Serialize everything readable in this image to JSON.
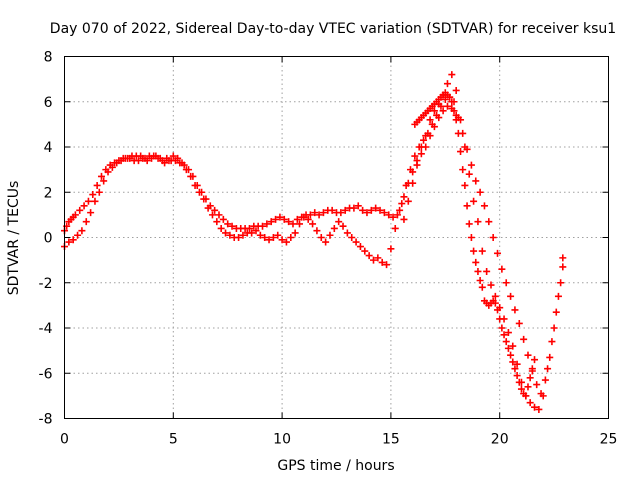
{
  "chart_data": {
    "type": "scatter",
    "title": "Day 070 of 2022, Sidereal Day-to-day VTEC variation (SDTVAR) for receiver ksu1",
    "xlabel": "GPS time / hours",
    "ylabel": "SDTVAR / TECUs",
    "xlim": [
      0,
      25
    ],
    "ylim": [
      -8,
      8
    ],
    "xticks": [
      0,
      5,
      10,
      15,
      20,
      25
    ],
    "yticks": [
      -8,
      -6,
      -4,
      -2,
      0,
      2,
      4,
      6,
      8
    ],
    "grid": true,
    "legend": "none",
    "marker": "+",
    "color": "#ff0000",
    "series": [
      {
        "x": [
          0.0,
          0.1,
          0.2,
          0.3,
          0.4,
          0.5,
          0.7,
          0.9,
          1.1,
          1.3,
          1.5,
          1.7,
          1.9,
          2.1,
          2.3,
          2.5,
          2.7,
          2.9,
          3.1,
          3.3,
          3.5,
          3.7,
          3.9,
          4.1,
          4.3,
          4.5,
          4.7,
          4.9,
          5.1,
          5.3,
          5.5,
          5.7,
          5.9,
          6.1,
          6.3,
          6.5,
          6.7,
          6.9,
          7.1,
          7.3,
          7.5,
          7.7,
          7.9,
          8.1,
          8.3,
          8.5,
          8.7,
          8.9,
          9.1,
          9.3,
          9.5,
          9.7,
          9.9,
          10.1,
          10.3,
          10.5,
          10.7,
          10.9,
          11.1,
          11.3,
          11.5,
          11.7,
          11.9,
          12.1,
          12.3,
          12.5,
          12.7,
          12.9,
          13.1,
          13.3,
          13.5,
          13.7,
          13.9,
          14.1,
          14.3,
          14.5,
          14.7,
          14.9,
          15.1,
          15.3,
          15.5,
          15.7,
          15.9,
          16.1,
          16.3,
          16.5,
          16.7,
          16.9,
          17.1,
          17.3,
          17.5,
          17.7,
          17.9,
          18.1,
          18.3,
          18.5,
          18.7,
          18.9,
          19.1,
          19.3,
          19.5,
          19.7,
          19.9,
          20.1,
          20.3,
          20.5,
          20.7,
          20.9,
          21.1,
          21.3,
          21.5,
          21.7,
          21.9,
          22.1,
          22.3,
          22.5,
          22.7,
          22.9
        ],
        "y": [
          0.3,
          0.5,
          0.7,
          0.8,
          0.9,
          1.0,
          1.2,
          1.4,
          1.6,
          1.9,
          2.3,
          2.7,
          3.0,
          3.2,
          3.3,
          3.4,
          3.5,
          3.5,
          3.6,
          3.6,
          3.6,
          3.5,
          3.6,
          3.6,
          3.5,
          3.4,
          3.5,
          3.4,
          3.4,
          3.3,
          3.2,
          3.0,
          2.7,
          2.3,
          2.0,
          1.7,
          1.4,
          1.2,
          1.0,
          0.8,
          0.6,
          0.5,
          0.4,
          0.4,
          0.4,
          0.4,
          0.5,
          0.5,
          0.5,
          0.6,
          0.7,
          0.8,
          0.9,
          0.8,
          0.7,
          0.6,
          0.8,
          0.9,
          1.0,
          1.0,
          1.1,
          1.0,
          1.1,
          1.2,
          1.2,
          1.1,
          1.1,
          1.2,
          1.3,
          1.3,
          1.4,
          1.2,
          1.1,
          1.2,
          1.3,
          1.2,
          1.1,
          1.0,
          0.9,
          1.0,
          1.5,
          2.3,
          3.0,
          3.6,
          4.0,
          4.3,
          4.6,
          5.0,
          5.4,
          5.8,
          6.1,
          6.2,
          6.0,
          5.3,
          4.6,
          3.9,
          3.2,
          2.5,
          2.0,
          1.4,
          0.7,
          0.0,
          -0.7,
          -1.4,
          -2.0,
          -2.6,
          -3.2,
          -3.8,
          -4.5,
          -5.2,
          -5.9,
          -6.5,
          -6.9,
          -6.3,
          -5.3,
          -4.0,
          -2.6,
          -1.3
        ]
      },
      {
        "x": [
          0.0,
          0.2,
          0.4,
          0.6,
          0.8,
          1.0,
          1.2,
          1.4,
          1.6,
          1.8,
          2.0,
          2.2,
          2.4,
          2.6,
          2.8,
          3.0,
          3.2,
          3.4,
          3.6,
          3.8,
          4.0,
          4.2,
          4.4,
          4.6,
          4.8,
          5.0,
          5.2,
          5.4,
          5.6,
          5.8,
          6.0,
          6.2,
          6.4,
          6.6,
          6.8,
          7.0,
          7.2,
          7.4,
          7.6,
          7.8,
          8.0,
          8.2,
          8.4,
          8.6,
          8.8,
          9.0,
          9.2,
          9.4,
          9.6,
          9.8,
          10.0,
          10.2,
          10.4,
          10.6,
          10.8,
          11.0,
          11.2,
          11.4,
          11.6,
          11.8,
          12.0,
          12.2,
          12.4,
          12.6,
          12.8,
          13.0,
          13.2,
          13.4,
          13.6,
          13.8,
          14.0,
          14.2,
          14.4,
          14.6,
          14.8,
          15.0,
          15.2,
          15.4,
          15.6,
          15.8,
          16.0,
          16.2,
          16.4,
          16.6,
          16.8,
          17.0,
          17.2,
          17.4,
          17.6,
          17.8,
          18.0
        ],
        "y": [
          -0.4,
          -0.2,
          -0.1,
          0.1,
          0.3,
          0.7,
          1.1,
          1.6,
          2.0,
          2.5,
          2.9,
          3.1,
          3.3,
          3.4,
          3.5,
          3.5,
          3.4,
          3.4,
          3.5,
          3.4,
          3.5,
          3.6,
          3.5,
          3.3,
          3.4,
          3.6,
          3.5,
          3.3,
          3.0,
          2.7,
          2.3,
          2.0,
          1.7,
          1.3,
          1.0,
          0.7,
          0.4,
          0.2,
          0.1,
          0.0,
          0.0,
          0.1,
          0.2,
          0.2,
          0.3,
          0.1,
          0.0,
          -0.1,
          0.0,
          0.1,
          -0.1,
          -0.2,
          0.0,
          0.2,
          0.6,
          0.9,
          0.8,
          0.6,
          0.3,
          0.0,
          -0.2,
          0.1,
          0.4,
          0.7,
          0.5,
          0.2,
          0.0,
          -0.2,
          -0.4,
          -0.6,
          -0.8,
          -1.0,
          -0.9,
          -1.1,
          -1.2,
          -0.5,
          0.4,
          1.2,
          1.8,
          2.4,
          2.9,
          3.4,
          3.7,
          4.0,
          4.5,
          4.9,
          5.3,
          5.6,
          5.8,
          5.7,
          5.4
        ]
      },
      {
        "x": [
          15.6,
          15.8,
          16.0,
          16.2,
          16.4,
          16.6,
          16.8,
          17.0,
          17.2,
          17.4,
          17.6,
          17.8,
          18.0,
          18.2,
          18.4,
          18.6,
          18.8,
          19.0,
          19.2,
          19.4,
          19.6,
          19.8,
          20.0,
          20.2,
          20.4,
          20.6,
          20.8,
          21.0,
          21.2,
          21.4,
          21.6,
          21.8,
          22.0,
          22.2,
          22.4,
          22.6,
          22.8,
          22.9
        ],
        "y": [
          0.8,
          1.6,
          2.4,
          3.2,
          4.0,
          4.5,
          5.2,
          5.6,
          5.9,
          6.3,
          6.8,
          7.2,
          6.5,
          5.2,
          4.0,
          2.8,
          1.6,
          0.7,
          -0.6,
          -1.5,
          -2.1,
          -2.6,
          -3.1,
          -3.6,
          -4.2,
          -4.8,
          -5.6,
          -6.4,
          -7.0,
          -7.3,
          -7.5,
          -7.6,
          -7.0,
          -5.8,
          -4.6,
          -3.3,
          -2.0,
          -0.9
        ]
      },
      {
        "x": [
          16.1,
          16.2,
          16.3,
          16.4,
          16.5,
          16.6,
          16.7,
          16.8,
          16.9,
          17.0,
          17.1,
          17.2,
          17.3,
          17.4,
          17.5,
          17.6,
          17.7,
          17.8,
          17.9,
          18.0,
          18.1,
          18.2,
          18.3,
          18.4,
          18.5,
          18.6,
          18.7,
          18.8,
          18.9,
          19.0,
          19.1,
          19.2
        ],
        "y": [
          5.0,
          5.1,
          5.2,
          5.3,
          5.4,
          5.5,
          5.6,
          5.7,
          5.8,
          5.9,
          6.0,
          6.1,
          6.2,
          6.3,
          6.4,
          6.3,
          6.2,
          6.0,
          5.6,
          5.2,
          4.6,
          3.8,
          3.0,
          2.3,
          1.4,
          0.6,
          0.0,
          -0.6,
          -1.1,
          -1.5,
          -1.9,
          -2.2
        ]
      },
      {
        "x": [
          19.3,
          19.4,
          19.5,
          19.6,
          19.7,
          19.8,
          19.9,
          20.0,
          20.1,
          20.2,
          20.3,
          20.4,
          20.5,
          20.6,
          20.7,
          20.8,
          20.9,
          21.0,
          21.1,
          21.2,
          21.3,
          21.4,
          21.5,
          21.6
        ],
        "y": [
          -2.8,
          -2.9,
          -3.0,
          -2.9,
          -2.8,
          -2.9,
          -3.2,
          -3.6,
          -4.0,
          -4.3,
          -4.6,
          -4.9,
          -5.2,
          -5.5,
          -5.8,
          -6.1,
          -6.4,
          -6.7,
          -6.9,
          -7.0,
          -6.6,
          -6.2,
          -5.8,
          -5.4
        ]
      }
    ]
  }
}
